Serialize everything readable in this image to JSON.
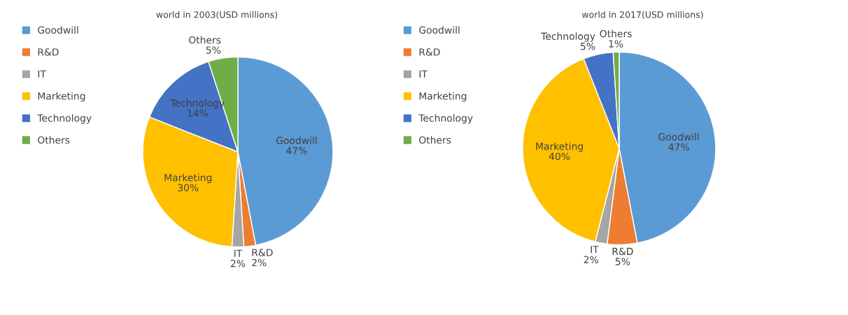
{
  "chart_data": [
    {
      "type": "pie",
      "title": "world in 2003(USD millions)",
      "categories": [
        "Goodwill",
        "R&D",
        "IT",
        "Marketing",
        "Technology",
        "Others"
      ],
      "values": [
        47,
        2,
        2,
        30,
        14,
        5
      ],
      "value_labels": [
        "47%",
        "2%",
        "2%",
        "30%",
        "14%",
        "5%"
      ],
      "colors": [
        "#5b9bd5",
        "#ed7d31",
        "#a5a5a5",
        "#ffc000",
        "#4472c4",
        "#70ad47"
      ],
      "legend": "top left"
    },
    {
      "type": "pie",
      "title": "world in 2017(USD millions)",
      "categories": [
        "Goodwill",
        "R&D",
        "IT",
        "Marketing",
        "Technology",
        "Others"
      ],
      "values": [
        47,
        5,
        2,
        40,
        5,
        1
      ],
      "value_labels": [
        "47%",
        "5%",
        "2%",
        "40%",
        "5%",
        "1%"
      ],
      "colors": [
        "#5b9bd5",
        "#ed7d31",
        "#a5a5a5",
        "#ffc000",
        "#4472c4",
        "#70ad47"
      ],
      "legend": "top left"
    }
  ]
}
